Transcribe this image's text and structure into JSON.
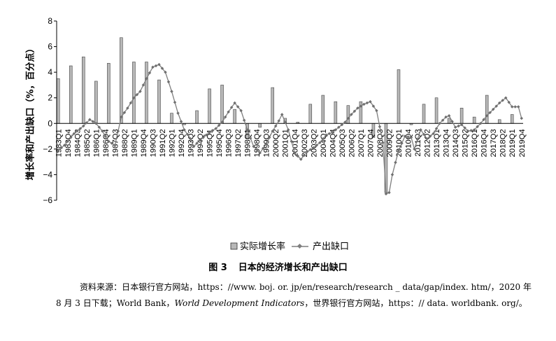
{
  "figure": {
    "number": "图 3",
    "title": "日本的经济增长和产出缺口",
    "source_parts": [
      "资料来源：日本银行官方网站，https：//www. boj. or. jp/en/research/research _ data/gap/index. htm/，2020 年 8 月 3 日下载；World Bank，",
      "World Development Indicators",
      "，世界银行官方网站，https：// data. worldbank. org/。"
    ]
  },
  "chart_data": {
    "type": "bar+line",
    "ylabel": "增长率和产出缺口（%，百分点）",
    "ylim": [
      -6,
      8
    ],
    "yticks": [
      "8",
      "6",
      "4",
      "2",
      "0",
      "−2",
      "−4",
      "−6"
    ],
    "grid": false,
    "legend_position": "bottom",
    "series": [
      {
        "name": "实际增长率",
        "type": "bar",
        "color": "#b8b8b8"
      },
      {
        "name": "产出缺口",
        "type": "line",
        "color": "#7f7f7f"
      }
    ],
    "x_tick_labels": [
      "1983Q1",
      "1983Q4",
      "1984Q3",
      "1985Q2",
      "1986Q1",
      "1986Q4",
      "1987Q3",
      "1988Q2",
      "1989Q1",
      "1989Q4",
      "1990Q3",
      "1991Q2",
      "1992Q1",
      "1992Q4",
      "1993Q3",
      "1994Q2",
      "1995Q1",
      "1995Q4",
      "1996Q3",
      "1997Q2",
      "1998Q1",
      "1998Q4",
      "1999Q3",
      "2000Q2",
      "2001Q1",
      "2001Q4",
      "2002Q3",
      "2003Q2",
      "2004Q1",
      "2004Q4",
      "2005Q3",
      "2006Q2",
      "2007Q1",
      "2007Q4",
      "2008Q3",
      "2009Q2",
      "2010Q1",
      "2010Q4",
      "2011Q3",
      "2012Q2",
      "2013Q1",
      "2013Q4",
      "2014Q3",
      "2015Q2",
      "2016Q1",
      "2016Q4",
      "2017Q3",
      "2018Q2",
      "2019Q1",
      "2019Q4"
    ],
    "annual_growth": [
      {
        "year": 1983,
        "value": 3.5
      },
      {
        "year": 1984,
        "value": 4.5
      },
      {
        "year": 1985,
        "value": 5.2
      },
      {
        "year": 1986,
        "value": 3.3
      },
      {
        "year": 1987,
        "value": 4.7
      },
      {
        "year": 1988,
        "value": 6.7
      },
      {
        "year": 1989,
        "value": 4.8
      },
      {
        "year": 1990,
        "value": 4.8
      },
      {
        "year": 1991,
        "value": 3.4
      },
      {
        "year": 1992,
        "value": 0.8
      },
      {
        "year": 1993,
        "value": -0.1
      },
      {
        "year": 1994,
        "value": 1.0
      },
      {
        "year": 1995,
        "value": 2.7
      },
      {
        "year": 1996,
        "value": 3.0
      },
      {
        "year": 1997,
        "value": 1.1
      },
      {
        "year": 1998,
        "value": -1.2
      },
      {
        "year": 1999,
        "value": -0.3
      },
      {
        "year": 2000,
        "value": 2.8
      },
      {
        "year": 2001,
        "value": 0.4
      },
      {
        "year": 2002,
        "value": 0.1
      },
      {
        "year": 2003,
        "value": 1.5
      },
      {
        "year": 2004,
        "value": 2.2
      },
      {
        "year": 2005,
        "value": 1.7
      },
      {
        "year": 2006,
        "value": 1.4
      },
      {
        "year": 2007,
        "value": 1.7
      },
      {
        "year": 2008,
        "value": -1.1
      },
      {
        "year": 2009,
        "value": -5.4
      },
      {
        "year": 2010,
        "value": 4.2
      },
      {
        "year": 2011,
        "value": -0.1
      },
      {
        "year": 2012,
        "value": 1.5
      },
      {
        "year": 2013,
        "value": 2.0
      },
      {
        "year": 2014,
        "value": 0.4
      },
      {
        "year": 2015,
        "value": 1.2
      },
      {
        "year": 2016,
        "value": 0.5
      },
      {
        "year": 2017,
        "value": 2.2
      },
      {
        "year": 2018,
        "value": 0.3
      },
      {
        "year": 2019,
        "value": 0.7
      }
    ],
    "output_gap_keypoints": [
      [
        "1983Q1",
        -2.1
      ],
      [
        "1983Q3",
        -1.7
      ],
      [
        "1984Q2",
        -0.8
      ],
      [
        "1985Q1",
        -0.2
      ],
      [
        "1985Q3",
        0.3
      ],
      [
        "1986Q1",
        0.0
      ],
      [
        "1986Q3",
        -0.6
      ],
      [
        "1987Q1",
        -1.4
      ],
      [
        "1987Q3",
        -1.7
      ],
      [
        "1988Q1",
        0.5
      ],
      [
        "1988Q3",
        1.2
      ],
      [
        "1989Q1",
        2.0
      ],
      [
        "1989Q3",
        2.5
      ],
      [
        "1990Q1",
        3.5
      ],
      [
        "1990Q3",
        4.4
      ],
      [
        "1991Q1",
        4.6
      ],
      [
        "1991Q3",
        4.0
      ],
      [
        "1992Q1",
        2.5
      ],
      [
        "1992Q3",
        0.8
      ],
      [
        "1993Q1",
        -0.5
      ],
      [
        "1993Q3",
        -1.2
      ],
      [
        "1993Q4",
        -1.8
      ],
      [
        "1994Q2",
        -1.3
      ],
      [
        "1995Q1",
        -0.7
      ],
      [
        "1995Q3",
        -0.4
      ],
      [
        "1996Q1",
        0.1
      ],
      [
        "1996Q3",
        0.9
      ],
      [
        "1997Q1",
        1.6
      ],
      [
        "1997Q3",
        1.0
      ],
      [
        "1998Q1",
        -0.5
      ],
      [
        "1998Q3",
        -1.8
      ],
      [
        "1999Q1",
        -2.3
      ],
      [
        "1999Q3",
        -1.6
      ],
      [
        "2000Q1",
        -0.6
      ],
      [
        "2000Q3",
        0.2
      ],
      [
        "2000Q4",
        0.7
      ],
      [
        "2001Q2",
        -0.5
      ],
      [
        "2001Q4",
        -2.3
      ],
      [
        "2002Q2",
        -2.8
      ],
      [
        "2002Q4",
        -2.2
      ],
      [
        "2003Q2",
        -1.9
      ],
      [
        "2003Q4",
        -1.5
      ],
      [
        "2004Q2",
        -0.9
      ],
      [
        "2004Q4",
        -0.7
      ],
      [
        "2005Q2",
        -0.3
      ],
      [
        "2005Q4",
        0.1
      ],
      [
        "2006Q2",
        0.7
      ],
      [
        "2006Q4",
        1.2
      ],
      [
        "2007Q2",
        1.5
      ],
      [
        "2007Q4",
        1.7
      ],
      [
        "2008Q2",
        1.0
      ],
      [
        "2008Q4",
        -1.5
      ],
      [
        "2009Q1",
        -5.5
      ],
      [
        "2009Q2",
        -5.4
      ],
      [
        "2009Q3",
        -4.0
      ],
      [
        "2010Q1",
        -2.1
      ],
      [
        "2010Q3",
        -1.0
      ],
      [
        "2011Q1",
        -1.1
      ],
      [
        "2011Q2",
        -2.0
      ],
      [
        "2011Q4",
        -0.5
      ],
      [
        "2012Q2",
        -1.2
      ],
      [
        "2012Q4",
        -0.8
      ],
      [
        "2013Q2",
        0.0
      ],
      [
        "2013Q4",
        0.5
      ],
      [
        "2014Q1",
        0.6
      ],
      [
        "2014Q3",
        -0.3
      ],
      [
        "2015Q1",
        -0.1
      ],
      [
        "2015Q3",
        -0.6
      ],
      [
        "2016Q1",
        -0.5
      ],
      [
        "2016Q3",
        0.0
      ],
      [
        "2017Q1",
        0.6
      ],
      [
        "2017Q3",
        1.1
      ],
      [
        "2018Q1",
        1.6
      ],
      [
        "2018Q3",
        2.0
      ],
      [
        "2019Q1",
        1.3
      ],
      [
        "2019Q3",
        1.3
      ],
      [
        "2019Q4",
        0.4
      ]
    ]
  }
}
